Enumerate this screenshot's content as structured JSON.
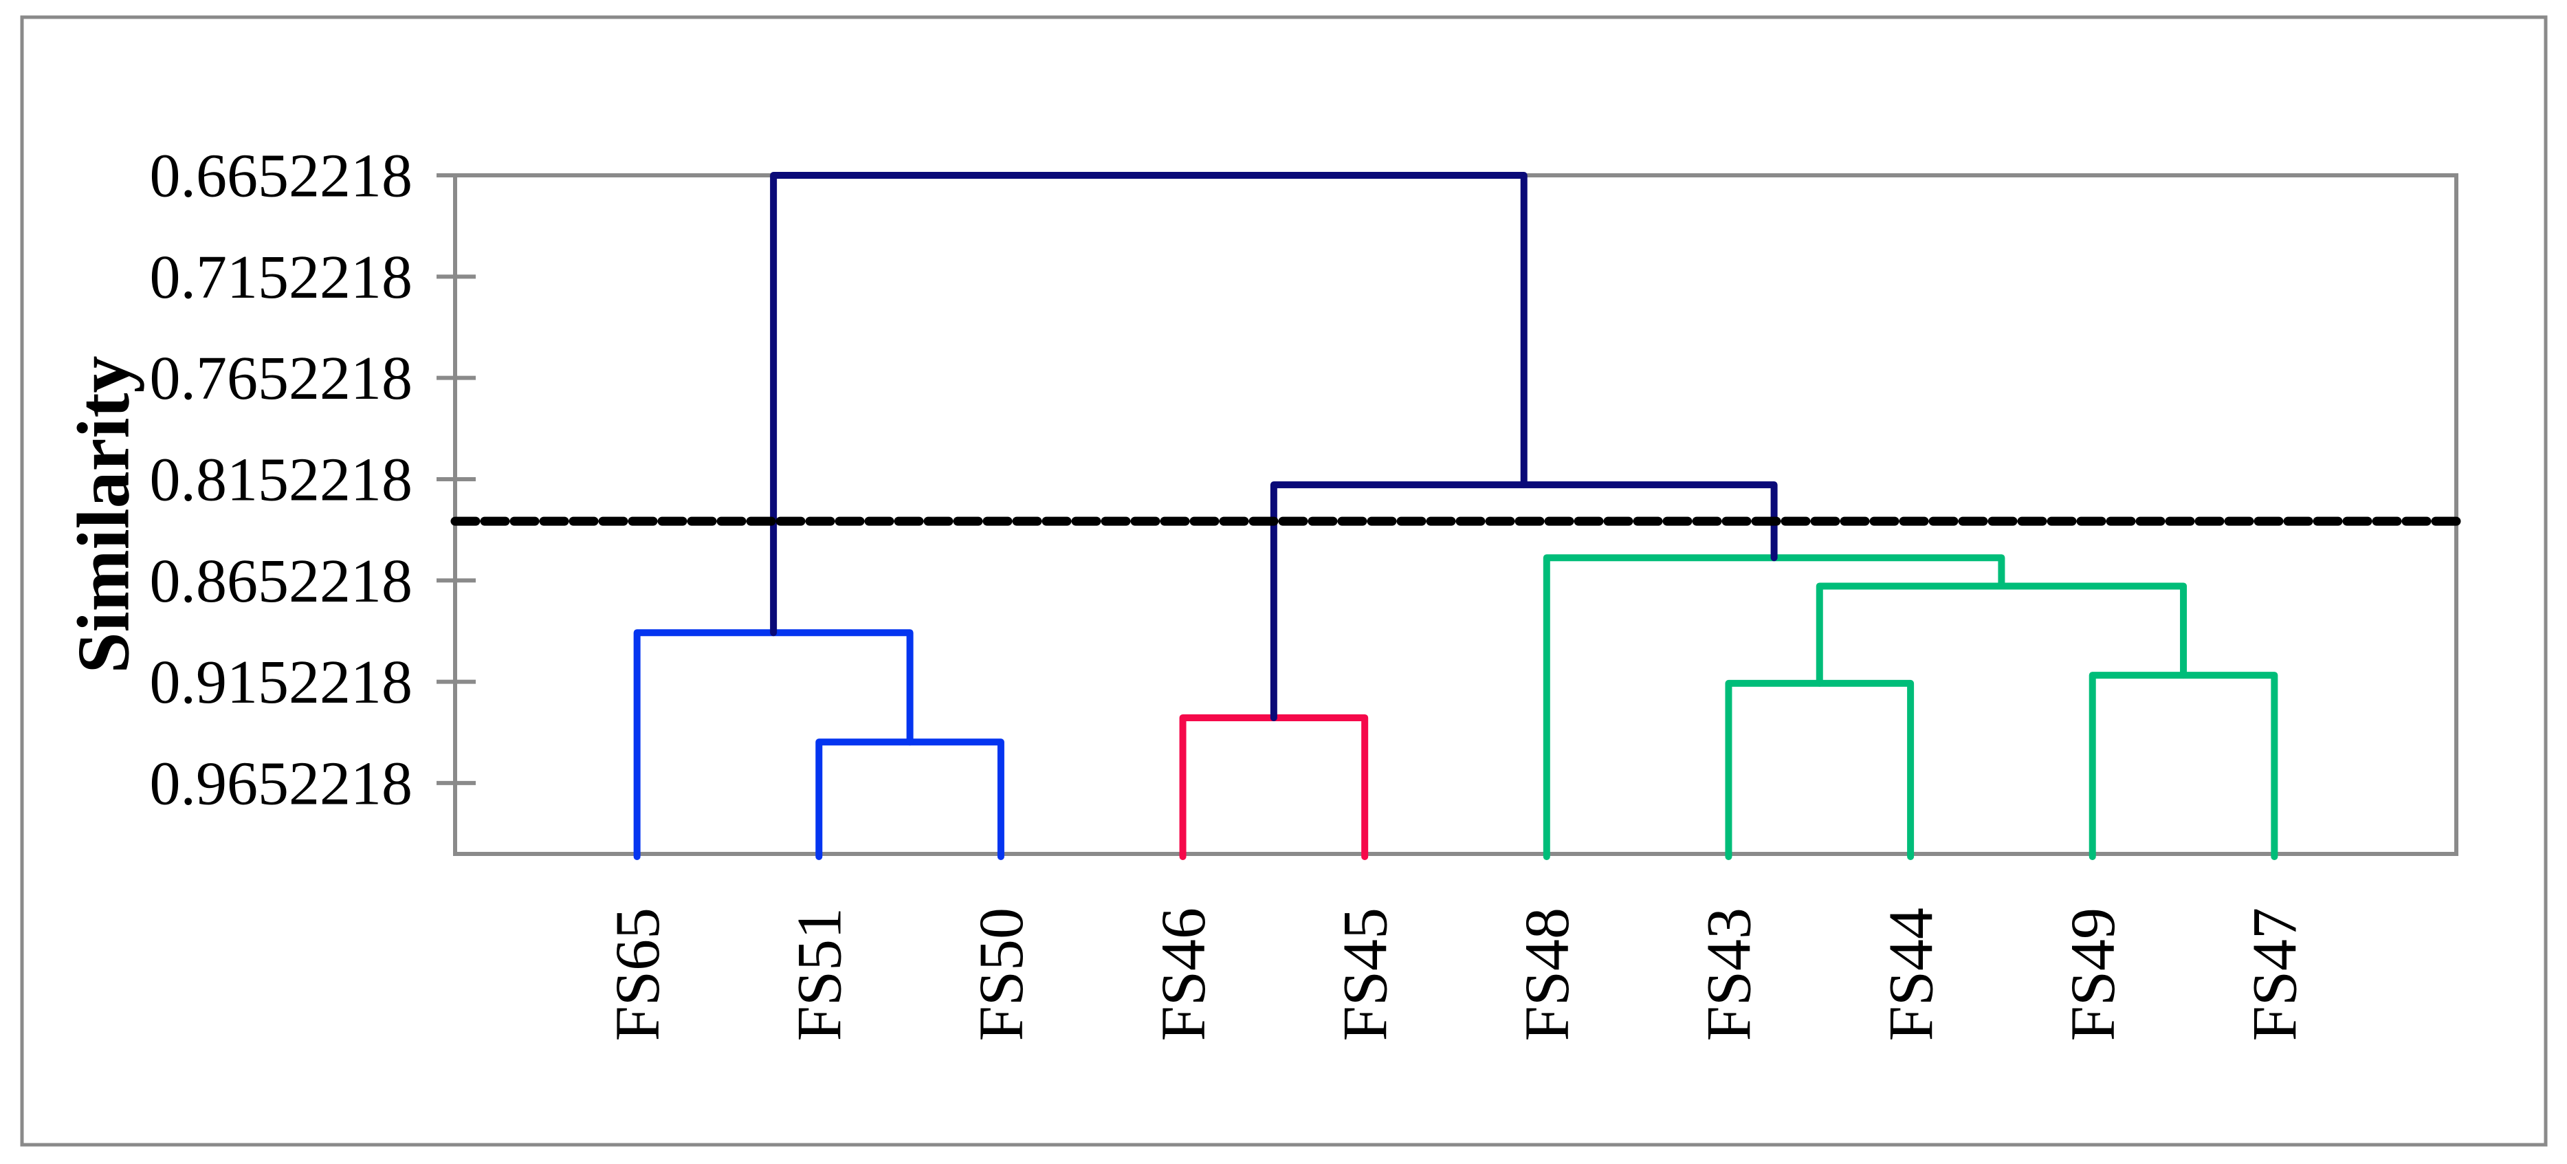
{
  "figure": {
    "background": "#ffffff",
    "outer_border_color": "#8a8a8a"
  },
  "chart_data": {
    "type": "dendrogram",
    "title": "",
    "ylabel": "Similarity",
    "xlabel": "",
    "grid": false,
    "legend_position": "none",
    "y_axis": {
      "direction": "increasing-downward",
      "top_value": 0.6652218,
      "bottom_value": 1.0002218,
      "tick_step": 0.05,
      "tick_labels": [
        "0.6652218",
        "0.7152218",
        "0.7652218",
        "0.8152218",
        "0.8652218",
        "0.9152218",
        "0.9652218"
      ],
      "tick_values": [
        0.6652218,
        0.7152218,
        0.7652218,
        0.8152218,
        0.8652218,
        0.9152218,
        0.9652218
      ]
    },
    "leaves": [
      "FS65",
      "FS51",
      "FS50",
      "FS46",
      "FS45",
      "FS48",
      "FS43",
      "FS44",
      "FS49",
      "FS47"
    ],
    "merges": [
      {
        "id": "M1",
        "children": [
          "FS51",
          "FS50"
        ],
        "similarity": 0.945,
        "color_key": "blue"
      },
      {
        "id": "M2",
        "children": [
          "FS65",
          "M1"
        ],
        "similarity": 0.891,
        "color_key": "blue"
      },
      {
        "id": "M3",
        "children": [
          "FS46",
          "FS45"
        ],
        "similarity": 0.933,
        "color_key": "red"
      },
      {
        "id": "M4",
        "children": [
          "FS43",
          "FS44"
        ],
        "similarity": 0.916,
        "color_key": "green"
      },
      {
        "id": "M5",
        "children": [
          "FS49",
          "FS47"
        ],
        "similarity": 0.912,
        "color_key": "green"
      },
      {
        "id": "M6",
        "children": [
          "M4",
          "M5"
        ],
        "similarity": 0.868,
        "color_key": "green"
      },
      {
        "id": "M7",
        "children": [
          "FS48",
          "M6"
        ],
        "similarity": 0.854,
        "color_key": "green"
      },
      {
        "id": "M8",
        "children": [
          "M3",
          "M7"
        ],
        "similarity": 0.818,
        "color_key": "navy"
      },
      {
        "id": "M9",
        "children": [
          "M2",
          "M8"
        ],
        "similarity": 0.6652218,
        "color_key": "navy"
      }
    ],
    "cut_line": {
      "similarity": 0.836,
      "style": "dashed",
      "color": "#000000"
    },
    "colors": {
      "navy": "#0a0a78",
      "blue": "#0535f0",
      "red": "#f5094a",
      "green": "#00bd79",
      "axis": "#8a8a8a",
      "text": "#000000"
    }
  }
}
